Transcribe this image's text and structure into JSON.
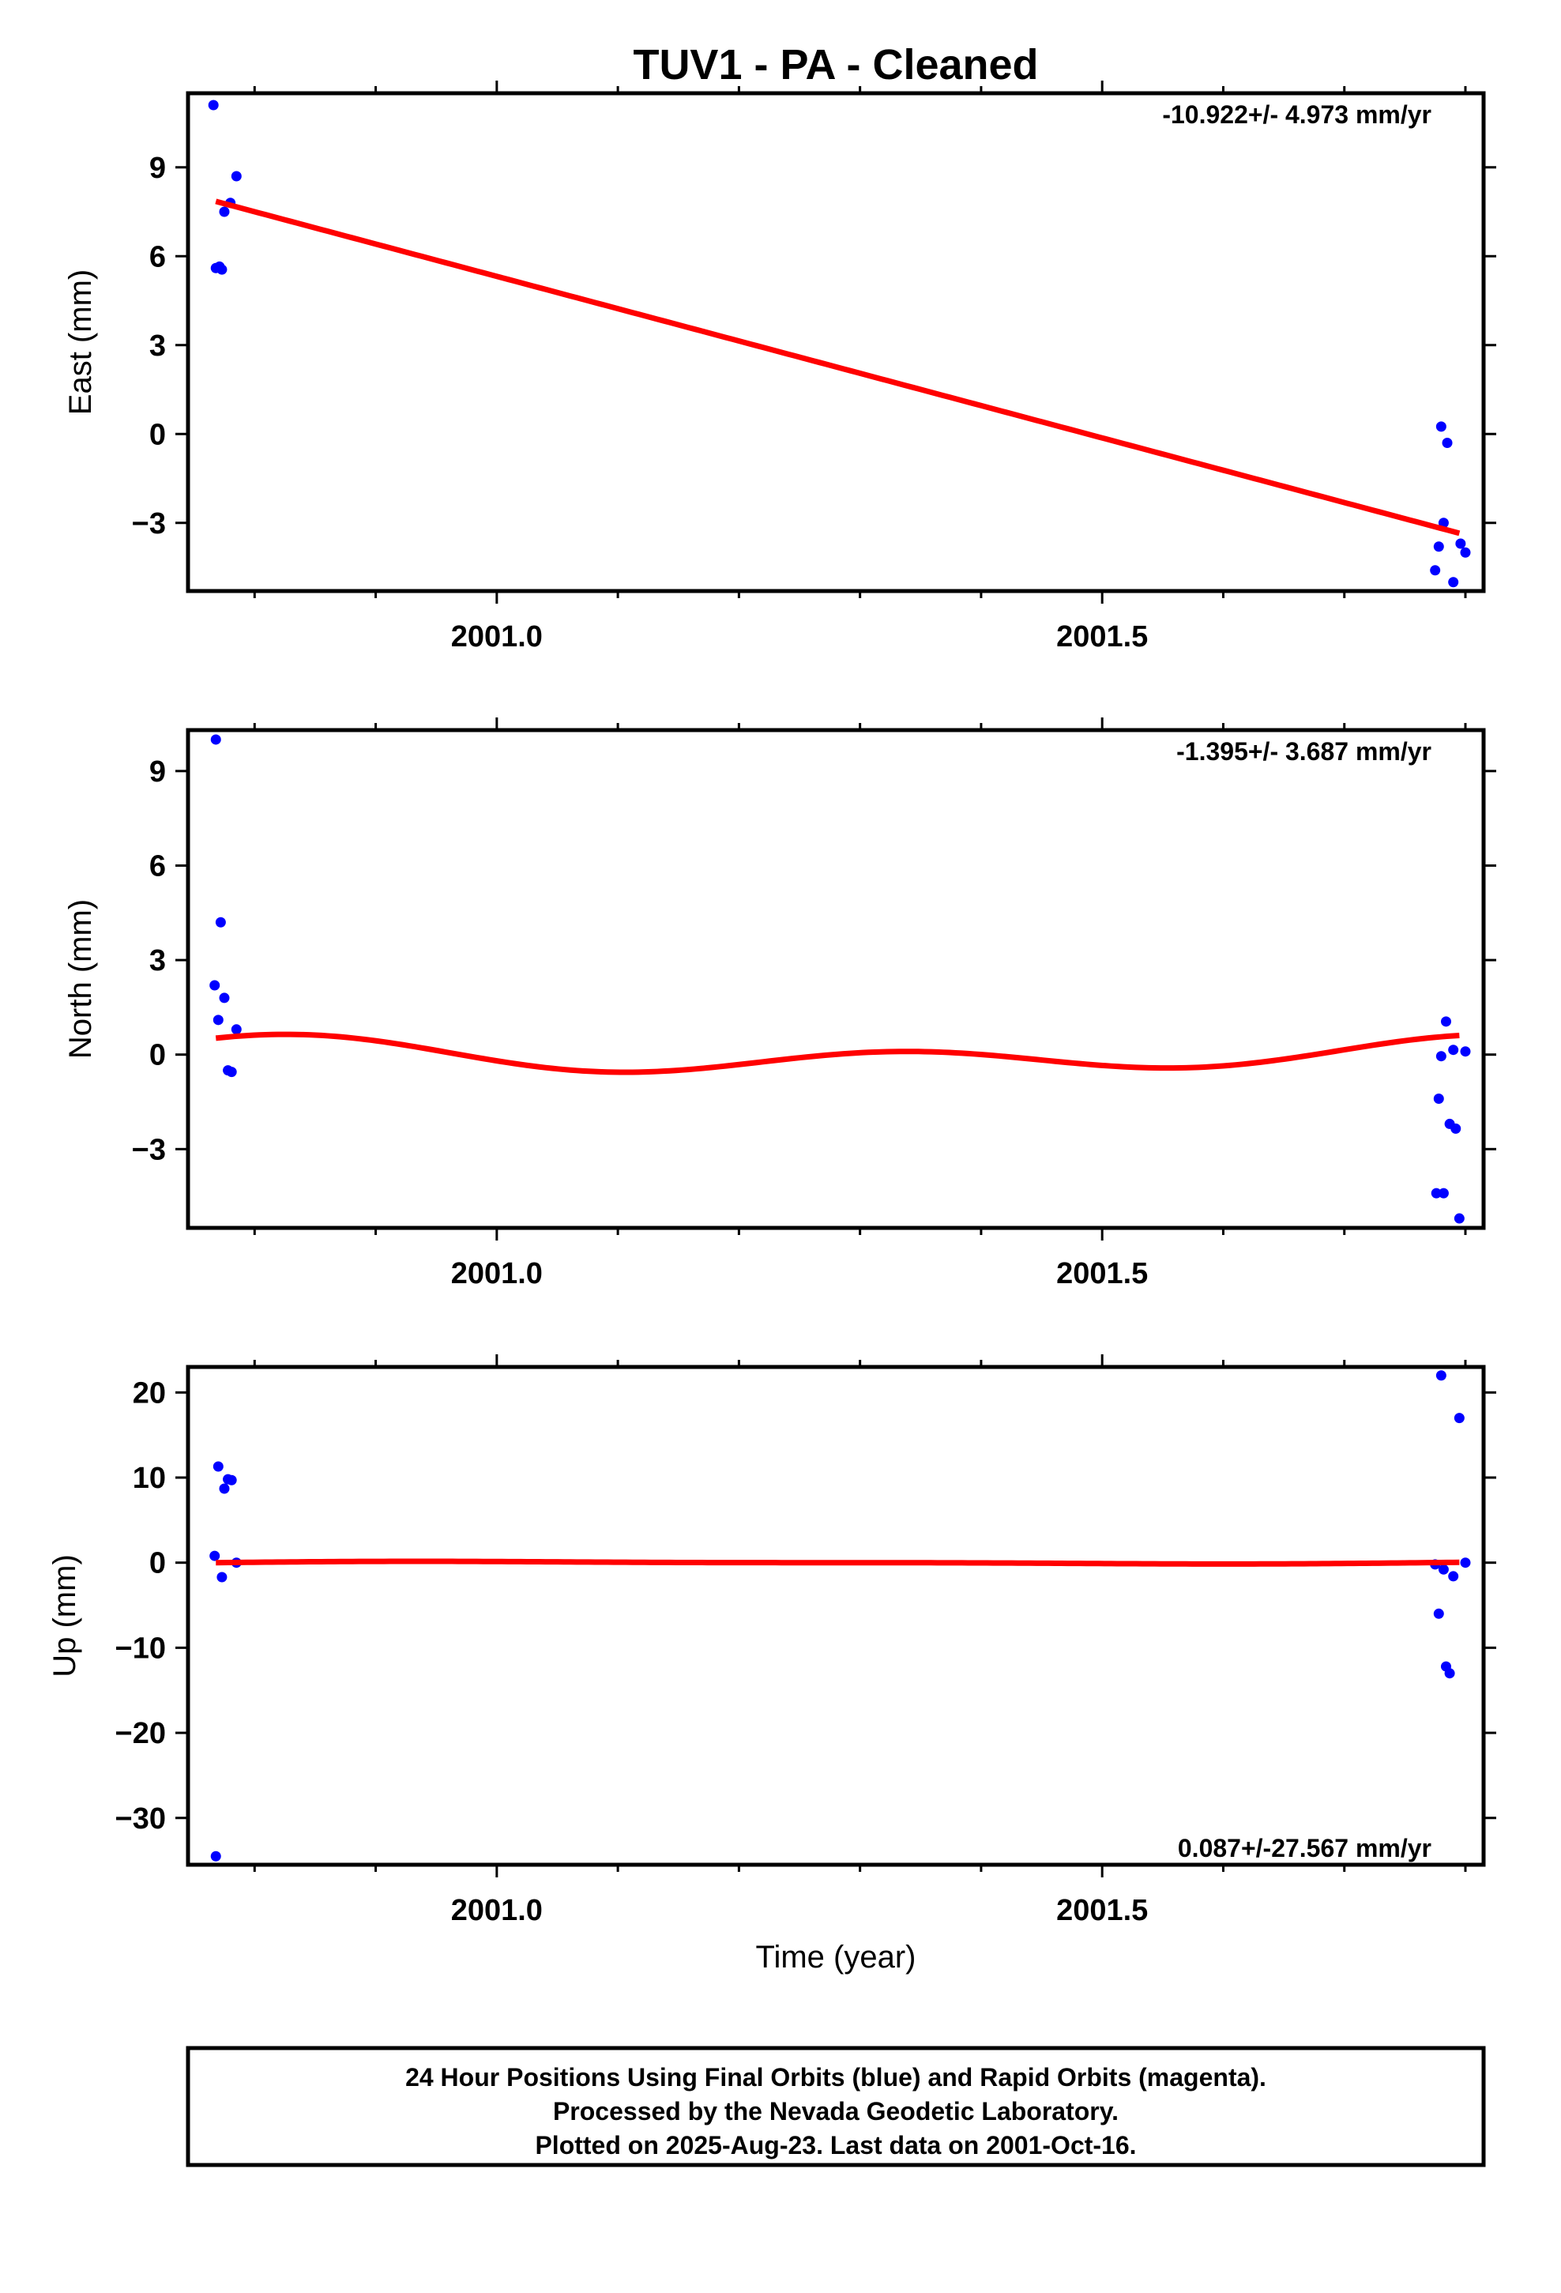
{
  "title": "TUV1  - PA - Cleaned",
  "colors": {
    "final_orbits": "#0000ff",
    "fit_line": "#ff0000",
    "frame": "#000000"
  },
  "chart_data": [
    {
      "type": "scatter",
      "name": "east",
      "ylabel": "East (mm)",
      "xlabel": "",
      "rate_label": "-10.922+/- 4.973 mm/yr",
      "xlim": [
        2000.745,
        2001.815
      ],
      "ylim": [
        -5.3,
        11.5
      ],
      "yticks": [
        -3,
        0,
        3,
        6,
        9
      ],
      "yticklabels": [
        "−3",
        "0",
        "3",
        "6",
        "9"
      ],
      "xticks": [
        2001.0,
        2001.5
      ],
      "xticklabels": [
        "2001.0",
        "2001.5"
      ],
      "xminor": [
        2000.8,
        2000.9,
        2001.1,
        2001.2,
        2001.3,
        2001.4,
        2001.6,
        2001.7,
        2001.8
      ],
      "points": [
        [
          2000.766,
          11.1
        ],
        [
          2000.768,
          5.6
        ],
        [
          2000.771,
          5.65
        ],
        [
          2000.773,
          5.55
        ],
        [
          2000.775,
          7.5
        ],
        [
          2000.78,
          7.8
        ],
        [
          2000.785,
          8.7
        ],
        [
          2001.775,
          -4.6
        ],
        [
          2001.778,
          -3.8
        ],
        [
          2001.78,
          0.25
        ],
        [
          2001.782,
          -3.0
        ],
        [
          2001.785,
          -0.3
        ],
        [
          2001.79,
          -5.0
        ],
        [
          2001.796,
          -3.7
        ],
        [
          2001.8,
          -4.0
        ]
      ],
      "fit": {
        "kind": "linear",
        "x": [
          2000.768,
          2001.795
        ],
        "y": [
          7.85,
          -3.35
        ]
      }
    },
    {
      "type": "scatter",
      "name": "north",
      "ylabel": "North (mm)",
      "xlabel": "",
      "rate_label": "-1.395+/- 3.687 mm/yr",
      "xlim": [
        2000.745,
        2001.815
      ],
      "ylim": [
        -5.5,
        10.3
      ],
      "yticks": [
        -3,
        0,
        3,
        6,
        9
      ],
      "yticklabels": [
        "−3",
        "0",
        "3",
        "6",
        "9"
      ],
      "xticks": [
        2001.0,
        2001.5
      ],
      "xticklabels": [
        "2001.0",
        "2001.5"
      ],
      "xminor": [
        2000.8,
        2000.9,
        2001.1,
        2001.2,
        2001.3,
        2001.4,
        2001.6,
        2001.7,
        2001.8
      ],
      "points": [
        [
          2000.767,
          2.2
        ],
        [
          2000.768,
          10.0
        ],
        [
          2000.77,
          1.1
        ],
        [
          2000.772,
          4.2
        ],
        [
          2000.775,
          1.8
        ],
        [
          2000.778,
          -0.5
        ],
        [
          2000.781,
          -0.55
        ],
        [
          2000.785,
          0.8
        ],
        [
          2001.776,
          -4.4
        ],
        [
          2001.778,
          -1.4
        ],
        [
          2001.78,
          -0.05
        ],
        [
          2001.782,
          -4.4
        ],
        [
          2001.784,
          1.05
        ],
        [
          2001.787,
          -2.2
        ],
        [
          2001.79,
          0.15
        ],
        [
          2001.792,
          -2.35
        ],
        [
          2001.795,
          -5.2
        ],
        [
          2001.8,
          0.1
        ]
      ],
      "fit": {
        "kind": "seasonal",
        "x": [
          2000.768,
          2001.795
        ]
      }
    },
    {
      "type": "scatter",
      "name": "up",
      "ylabel": "Up (mm)",
      "xlabel": "Time (year)",
      "rate_label": "0.087+/-27.567 mm/yr",
      "xlim": [
        2000.745,
        2001.815
      ],
      "ylim": [
        -35.5,
        23.0
      ],
      "yticks": [
        -30,
        -20,
        -10,
        0,
        10,
        20
      ],
      "yticklabels": [
        "−30",
        "−20",
        "−10",
        "0",
        "10",
        "20"
      ],
      "xticks": [
        2001.0,
        2001.5
      ],
      "xticklabels": [
        "2001.0",
        "2001.5"
      ],
      "xminor": [
        2000.8,
        2000.9,
        2001.1,
        2001.2,
        2001.3,
        2001.4,
        2001.6,
        2001.7,
        2001.8
      ],
      "points": [
        [
          2000.767,
          0.8
        ],
        [
          2000.768,
          -34.5
        ],
        [
          2000.77,
          11.3
        ],
        [
          2000.773,
          -1.7
        ],
        [
          2000.775,
          8.7
        ],
        [
          2000.778,
          9.8
        ],
        [
          2000.781,
          9.7
        ],
        [
          2000.785,
          0.0
        ],
        [
          2001.775,
          -0.2
        ],
        [
          2001.778,
          -6.0
        ],
        [
          2001.78,
          22.0
        ],
        [
          2001.782,
          -0.8
        ],
        [
          2001.784,
          -12.2
        ],
        [
          2001.787,
          -13.0
        ],
        [
          2001.79,
          -1.6
        ],
        [
          2001.795,
          17.0
        ],
        [
          2001.8,
          0.0
        ]
      ],
      "fit": {
        "kind": "seasonal-small",
        "x": [
          2000.768,
          2001.795
        ]
      }
    }
  ],
  "footer": {
    "line1": "24 Hour Positions Using Final Orbits (blue) and Rapid Orbits (magenta).",
    "line2": "Processed by the Nevada Geodetic Laboratory.",
    "line3": "Plotted on 2025-Aug-23. Last data on 2001-Oct-16."
  }
}
